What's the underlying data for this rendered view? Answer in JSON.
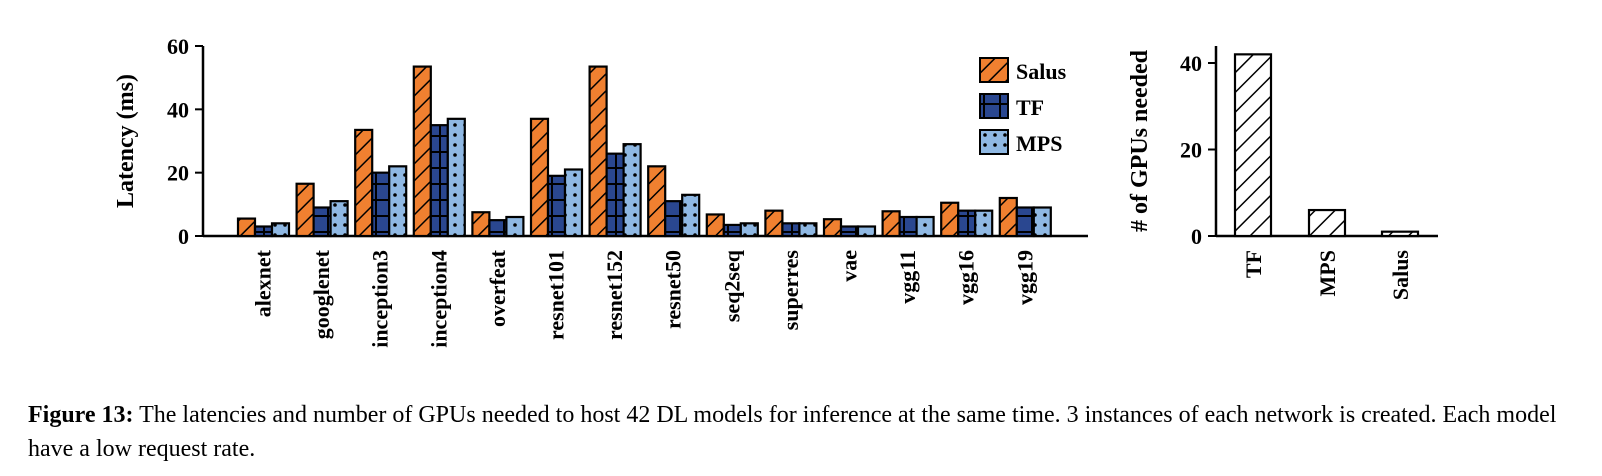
{
  "chart_data": [
    {
      "type": "bar",
      "ylabel": "Latency (ms)",
      "ylim": [
        0,
        60
      ],
      "yticks": [
        0,
        20,
        40,
        60
      ],
      "legend_position": "top-right",
      "categories": [
        "alexnet",
        "googlenet",
        "inception3",
        "inception4",
        "overfeat",
        "resnet101",
        "resnet152",
        "resnet50",
        "seq2seq",
        "superres",
        "vae",
        "vgg11",
        "vgg16",
        "vgg19"
      ],
      "series": [
        {
          "name": "Salus",
          "color": "#f08030",
          "pattern": "diagonal-hatch",
          "values": [
            5.5,
            16.5,
            33.5,
            53.5,
            7.5,
            37,
            53.5,
            22,
            6.8,
            8,
            5.3,
            7.8,
            10.5,
            12
          ]
        },
        {
          "name": "TF",
          "color": "#2a4790",
          "pattern": "grid",
          "values": [
            3,
            9,
            20,
            35,
            5,
            19,
            26,
            11,
            3.5,
            4,
            3,
            6,
            8,
            9
          ]
        },
        {
          "name": "MPS",
          "color": "#8fb8e3",
          "pattern": "dots",
          "values": [
            4,
            11,
            22,
            37,
            6,
            21,
            29,
            13,
            4,
            4,
            3,
            6,
            8,
            9
          ]
        }
      ]
    },
    {
      "type": "bar",
      "ylabel": "# of GPUs needed",
      "ylim": [
        0,
        45
      ],
      "yticks": [
        0,
        20,
        40
      ],
      "categories": [
        "TF",
        "MPS",
        "Salus"
      ],
      "values": [
        42,
        6,
        1
      ],
      "pattern": "diagonal-hatch"
    }
  ],
  "caption": {
    "label": "Figure 13:",
    "text": " The latencies and number of GPUs needed to host 42 DL models for inference at the same time. 3 instances of each network is created. Each model have a low request rate."
  }
}
